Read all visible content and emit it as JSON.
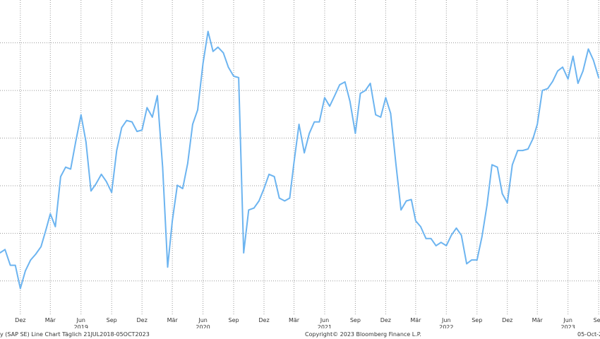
{
  "chart_data": {
    "type": "line",
    "title": "",
    "xlabel": "",
    "ylabel": "",
    "grid": true,
    "line_color": "#6cb4f0",
    "ylim": [
      73,
      139
    ],
    "xlim": [
      "2018-10-01",
      "2023-09-05"
    ],
    "yticks": [
      80,
      90,
      100,
      110,
      120,
      130
    ],
    "yticks_labeled": false,
    "x_ticks": [
      {
        "date": "2018-12-01",
        "label": "Dez"
      },
      {
        "date": "2019-03-01",
        "label": "Mär"
      },
      {
        "date": "2019-06-01",
        "label": "Jun"
      },
      {
        "date": "2019-09-01",
        "label": "Sep"
      },
      {
        "date": "2019-12-01",
        "label": "Dez"
      },
      {
        "date": "2020-03-01",
        "label": "Mär"
      },
      {
        "date": "2020-06-01",
        "label": "Jun"
      },
      {
        "date": "2020-09-01",
        "label": "Sep"
      },
      {
        "date": "2020-12-01",
        "label": "Dez"
      },
      {
        "date": "2021-03-01",
        "label": "Mär"
      },
      {
        "date": "2021-06-01",
        "label": "Jun"
      },
      {
        "date": "2021-09-01",
        "label": "Sep"
      },
      {
        "date": "2021-12-01",
        "label": "Dez"
      },
      {
        "date": "2022-03-01",
        "label": "Mär"
      },
      {
        "date": "2022-06-01",
        "label": "Jun"
      },
      {
        "date": "2022-09-01",
        "label": "Sep"
      },
      {
        "date": "2022-12-01",
        "label": "Dez"
      },
      {
        "date": "2023-03-01",
        "label": "Mär"
      },
      {
        "date": "2023-06-01",
        "label": "Jun"
      },
      {
        "date": "2023-09-01",
        "label": "Sep"
      }
    ],
    "year_labels": [
      {
        "date": "2019-06-01",
        "label": "2019"
      },
      {
        "date": "2020-06-01",
        "label": "2020"
      },
      {
        "date": "2021-06-01",
        "label": "2021"
      },
      {
        "date": "2022-06-01",
        "label": "2022"
      },
      {
        "date": "2023-06-01",
        "label": "2023"
      }
    ],
    "series": [
      {
        "x": [
          "2018-10-01",
          "2018-10-16",
          "2018-11-01",
          "2018-11-16",
          "2018-12-01",
          "2018-12-16",
          "2019-01-01",
          "2019-01-16",
          "2019-02-01",
          "2019-02-16",
          "2019-03-01",
          "2019-03-16",
          "2019-04-01",
          "2019-04-16",
          "2019-05-01",
          "2019-05-16",
          "2019-06-01",
          "2019-06-16",
          "2019-07-01",
          "2019-07-16",
          "2019-08-01",
          "2019-08-16",
          "2019-09-01",
          "2019-09-16",
          "2019-10-01",
          "2019-10-16",
          "2019-11-01",
          "2019-11-16",
          "2019-12-01",
          "2019-12-16",
          "2020-01-01",
          "2020-01-16",
          "2020-02-01",
          "2020-02-16",
          "2020-03-01",
          "2020-03-16",
          "2020-04-01",
          "2020-04-16",
          "2020-05-01",
          "2020-05-16",
          "2020-06-01",
          "2020-06-16",
          "2020-07-01",
          "2020-07-16",
          "2020-08-01",
          "2020-08-16",
          "2020-09-01",
          "2020-09-16",
          "2020-10-01",
          "2020-10-16",
          "2020-11-01",
          "2020-11-16",
          "2020-12-01",
          "2020-12-16",
          "2021-01-01",
          "2021-01-16",
          "2021-02-01",
          "2021-02-16",
          "2021-03-01",
          "2021-03-16",
          "2021-04-01",
          "2021-04-16",
          "2021-05-01",
          "2021-05-16",
          "2021-06-01",
          "2021-06-16",
          "2021-07-01",
          "2021-07-16",
          "2021-08-01",
          "2021-08-16",
          "2021-09-01",
          "2021-09-16",
          "2021-10-01",
          "2021-10-16",
          "2021-11-01",
          "2021-11-16",
          "2021-12-01",
          "2021-12-16",
          "2022-01-01",
          "2022-01-16",
          "2022-02-01",
          "2022-02-16",
          "2022-03-01",
          "2022-03-16",
          "2022-04-01",
          "2022-04-16",
          "2022-05-01",
          "2022-05-16",
          "2022-06-01",
          "2022-06-16",
          "2022-07-01",
          "2022-07-16",
          "2022-08-01",
          "2022-08-16",
          "2022-09-01",
          "2022-09-16",
          "2022-10-01",
          "2022-10-16",
          "2022-11-01",
          "2022-11-16",
          "2022-12-01",
          "2022-12-16",
          "2023-01-01",
          "2023-01-16",
          "2023-02-01",
          "2023-02-16",
          "2023-03-01",
          "2023-03-16",
          "2023-04-01",
          "2023-04-16",
          "2023-05-01",
          "2023-05-16",
          "2023-06-01",
          "2023-06-16",
          "2023-07-01",
          "2023-07-16",
          "2023-08-01",
          "2023-08-16",
          "2023-09-01"
        ],
        "y": [
          85.9,
          86.6,
          83.3,
          83.3,
          78.4,
          82.1,
          84.4,
          85.6,
          87.2,
          90.8,
          94.1,
          91.4,
          101.9,
          103.9,
          103.5,
          109.2,
          114.9,
          109.2,
          98.9,
          100.4,
          102.4,
          100.9,
          98.6,
          107.4,
          112.2,
          113.7,
          113.4,
          111.4,
          111.7,
          116.4,
          114.4,
          118.9,
          103.9,
          82.9,
          92.6,
          100.1,
          99.4,
          104.7,
          112.9,
          115.9,
          125.7,
          132.4,
          128.2,
          129.1,
          127.9,
          124.9,
          123.0,
          122.7,
          85.9,
          94.9,
          95.3,
          96.8,
          99.4,
          102.4,
          101.9,
          97.4,
          96.8,
          97.4,
          104.9,
          112.9,
          106.9,
          111.0,
          113.4,
          113.4,
          118.5,
          116.7,
          118.9,
          121.2,
          121.8,
          117.7,
          111.0,
          119.4,
          120.0,
          121.5,
          114.9,
          114.4,
          118.5,
          115.2,
          104.4,
          94.9,
          96.8,
          97.1,
          92.6,
          91.4,
          88.9,
          88.9,
          87.4,
          88.1,
          87.4,
          89.6,
          91.1,
          89.6,
          83.6,
          84.4,
          84.4,
          89.3,
          95.9,
          104.4,
          103.9,
          98.3,
          96.4,
          104.4,
          107.4,
          107.4,
          107.7,
          109.9,
          112.9,
          120.0,
          120.4,
          121.9,
          124.1,
          124.9,
          122.4,
          127.2,
          121.5,
          124.1,
          128.7,
          126.4,
          122.7
        ]
      }
    ]
  },
  "footer": {
    "left": "y (SAP SE) Line Chart  Täglich 21JUL2018-05OCT2023",
    "center": "Copyright© 2023 Bloomberg Finance L.P.",
    "right": "05-Oct-20"
  }
}
